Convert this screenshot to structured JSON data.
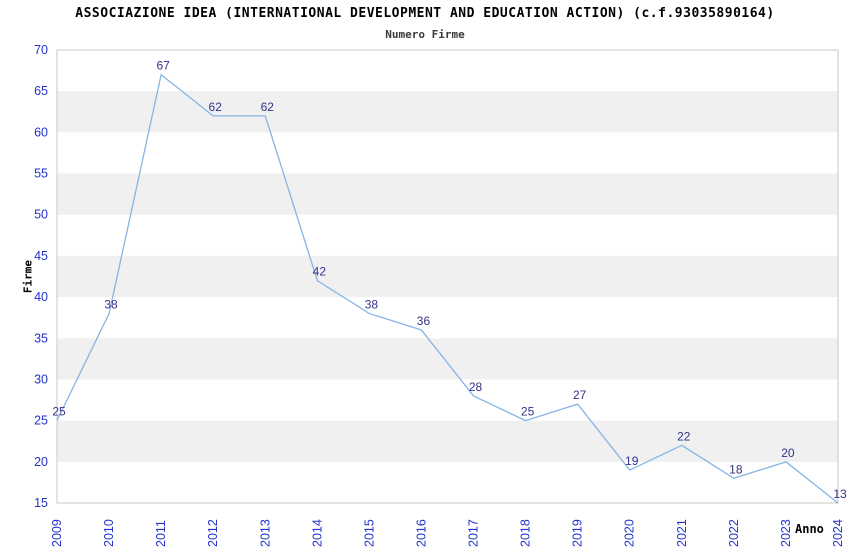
{
  "chart_data": {
    "type": "line",
    "title": "ASSOCIAZIONE IDEA (INTERNATIONAL DEVELOPMENT AND EDUCATION ACTION) (c.f.93035890164)",
    "subtitle": "Numero Firme",
    "xlabel": "Anno",
    "ylabel": "Firme",
    "categories": [
      "2009",
      "2010",
      "2011",
      "2012",
      "2013",
      "2014",
      "2015",
      "2016",
      "2017",
      "2018",
      "2019",
      "2020",
      "2021",
      "2022",
      "2023",
      "2024"
    ],
    "values": [
      25,
      38,
      67,
      62,
      62,
      42,
      38,
      36,
      28,
      25,
      27,
      19,
      22,
      18,
      20,
      13
    ],
    "point_labels": [
      "25",
      "38",
      "67",
      "62",
      "62",
      "42",
      "38",
      "36",
      "28",
      "25",
      "27",
      "19",
      "22",
      "18",
      "20",
      "13"
    ],
    "ylim": [
      15,
      70
    ],
    "ytick_step": 5,
    "yticks": [
      15,
      20,
      25,
      30,
      35,
      40,
      45,
      50,
      55,
      60,
      65,
      70
    ],
    "band_ranges": [
      [
        20,
        25
      ],
      [
        30,
        35
      ],
      [
        40,
        45
      ],
      [
        50,
        55
      ],
      [
        60,
        65
      ]
    ],
    "legend": "none",
    "grid": "alternating horizontal bands",
    "x_tick_rotation_deg": 90,
    "colors": {
      "line": "#85b4e6",
      "tick_label": "#2233cc",
      "point_label": "#333388",
      "band": "#f0f0f0",
      "plot_border": "#c8c8c8",
      "title": "#000000",
      "subtitle": "#3a3a3a",
      "background": "#ffffff"
    }
  }
}
